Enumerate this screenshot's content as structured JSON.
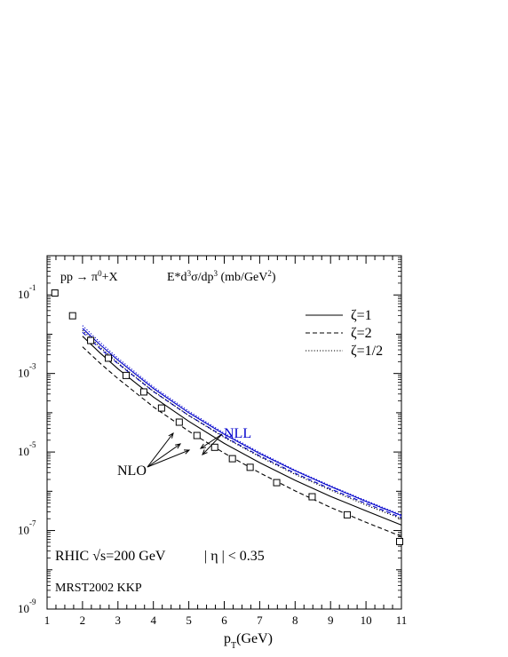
{
  "chart_data": {
    "type": "line",
    "title": "pp → π⁰+X",
    "ylabel": "E*d³σ/dp³ (mb/GeV²)",
    "xlabel": "p_T(GeV)",
    "xlim": [
      1,
      11
    ],
    "ylim_log10": [
      -9,
      0
    ],
    "y_scale": "log",
    "grid": false,
    "legend_position": "top-right",
    "x_ticks": [
      "1",
      "2",
      "3",
      "4",
      "5",
      "6",
      "7",
      "8",
      "9",
      "10",
      "11"
    ],
    "y_ticks": [
      {
        "base": "10",
        "exp": "-1"
      },
      {
        "base": "10",
        "exp": "-3"
      },
      {
        "base": "10",
        "exp": "-5"
      },
      {
        "base": "10",
        "exp": "-7"
      },
      {
        "base": "10",
        "exp": "-9"
      }
    ],
    "legend": [
      {
        "label": "ζ=1",
        "style": "solid"
      },
      {
        "label": "ζ=2",
        "style": "dashed"
      },
      {
        "label": "ζ=1/2",
        "style": "dotted"
      }
    ],
    "annotations": {
      "nll": "NLL",
      "nlo": "NLO",
      "rhic_prefix": "RHIC √s=200 GeV",
      "eta": "| η | < 0.35",
      "pdf": "MRST2002   KKP"
    },
    "colors": {
      "nll": "#0000cc",
      "nlo": "#000000",
      "data": "#000000"
    },
    "data_points": {
      "x": [
        1.22,
        1.72,
        2.23,
        2.73,
        3.23,
        3.73,
        4.23,
        4.73,
        5.23,
        5.73,
        6.23,
        6.73,
        7.48,
        8.48,
        9.47,
        10.95
      ],
      "log10_y": [
        -0.95,
        -1.53,
        -2.16,
        -2.61,
        -3.05,
        -3.47,
        -3.88,
        -4.24,
        -4.58,
        -4.88,
        -5.17,
        -5.39,
        -5.78,
        -6.14,
        -6.6,
        -7.28
      ]
    },
    "series": [
      {
        "group": "NLL",
        "style": "solid",
        "x": [
          2.0,
          2.5,
          3.0,
          4.0,
          5.0,
          6.0,
          7.0,
          8.0,
          9.0,
          10.0,
          11.0
        ],
        "log10_y": [
          -1.85,
          -2.27,
          -2.66,
          -3.38,
          -4.0,
          -4.55,
          -5.04,
          -5.48,
          -5.88,
          -6.26,
          -6.62
        ]
      },
      {
        "group": "NLL",
        "style": "dashed",
        "x": [
          2.0,
          2.5,
          3.0,
          4.0,
          5.0,
          6.0,
          7.0,
          8.0,
          9.0,
          10.0,
          11.0
        ],
        "log10_y": [
          -1.95,
          -2.37,
          -2.75,
          -3.46,
          -4.07,
          -4.61,
          -5.1,
          -5.54,
          -5.94,
          -6.31,
          -6.67
        ]
      },
      {
        "group": "NLL",
        "style": "dotted",
        "x": [
          2.0,
          2.5,
          3.0,
          4.0,
          5.0,
          6.0,
          7.0,
          8.0,
          9.0,
          10.0,
          11.0
        ],
        "log10_y": [
          -1.78,
          -2.21,
          -2.61,
          -3.34,
          -3.96,
          -4.52,
          -5.01,
          -5.46,
          -5.86,
          -6.24,
          -6.6
        ]
      },
      {
        "group": "NLO",
        "style": "solid",
        "x": [
          2.0,
          2.5,
          3.0,
          4.0,
          5.0,
          6.0,
          7.0,
          8.0,
          9.0,
          10.0,
          11.0
        ],
        "log10_y": [
          -2.05,
          -2.48,
          -2.88,
          -3.6,
          -4.22,
          -4.78,
          -5.27,
          -5.72,
          -6.13,
          -6.5,
          -6.86
        ]
      },
      {
        "group": "NLO",
        "style": "dashed",
        "x": [
          2.0,
          2.5,
          3.0,
          4.0,
          5.0,
          6.0,
          7.0,
          8.0,
          9.0,
          10.0,
          11.0
        ],
        "log10_y": [
          -2.32,
          -2.74,
          -3.13,
          -3.85,
          -4.47,
          -5.03,
          -5.53,
          -5.99,
          -6.41,
          -6.79,
          -7.15
        ]
      },
      {
        "group": "NLO",
        "style": "dotted",
        "x": [
          2.0,
          2.5,
          3.0,
          4.0,
          5.0,
          6.0,
          7.0,
          8.0,
          9.0,
          10.0,
          11.0
        ],
        "log10_y": [
          -1.9,
          -2.33,
          -2.73,
          -3.45,
          -4.07,
          -4.63,
          -5.12,
          -5.57,
          -5.97,
          -6.35,
          -6.7
        ]
      }
    ]
  }
}
